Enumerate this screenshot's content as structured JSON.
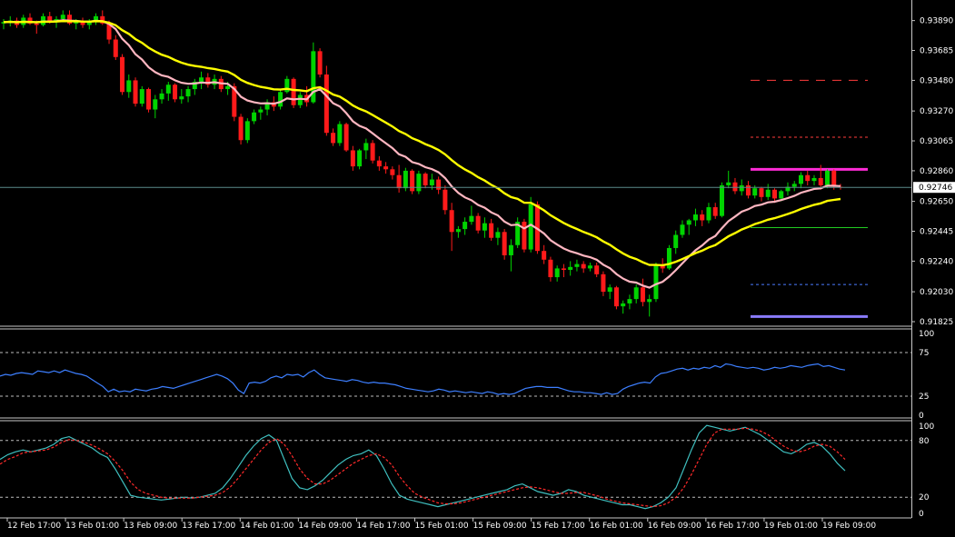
{
  "chart_data": [
    {
      "type": "candlestick",
      "panel": "price",
      "yticks": [
        "0.93890",
        "0.93685",
        "0.93480",
        "0.93270",
        "0.93065",
        "0.92860",
        "0.92650",
        "0.92445",
        "0.92240",
        "0.92030",
        "0.91825"
      ],
      "ylim": [
        0.918,
        0.94
      ],
      "current_price": "0.92746",
      "colors": {
        "up": "#00d400",
        "down": "#ff1a1a",
        "ma_fast": "#ffb6c1",
        "ma_slow": "#ffff00",
        "crosshair": "#5a8a8a"
      },
      "candles": [
        [
          0.9387,
          0.939,
          0.9383,
          0.9388
        ],
        [
          0.9388,
          0.9392,
          0.9385,
          0.9389
        ],
        [
          0.9389,
          0.9391,
          0.9384,
          0.9386
        ],
        [
          0.9386,
          0.9393,
          0.9384,
          0.9391
        ],
        [
          0.9391,
          0.9394,
          0.9386,
          0.9387
        ],
        [
          0.9387,
          0.9389,
          0.938,
          0.9386
        ],
        [
          0.9386,
          0.9394,
          0.9385,
          0.9392
        ],
        [
          0.9392,
          0.9395,
          0.9387,
          0.9388
        ],
        [
          0.9388,
          0.9392,
          0.9384,
          0.939
        ],
        [
          0.939,
          0.9396,
          0.9388,
          0.9393
        ],
        [
          0.9393,
          0.9396,
          0.9386,
          0.9387
        ],
        [
          0.9387,
          0.939,
          0.9383,
          0.9388
        ],
        [
          0.9388,
          0.9391,
          0.9384,
          0.9386
        ],
        [
          0.9386,
          0.939,
          0.9383,
          0.9388
        ],
        [
          0.9388,
          0.9394,
          0.9386,
          0.9392
        ],
        [
          0.9392,
          0.9396,
          0.9386,
          0.9387
        ],
        [
          0.9387,
          0.9389,
          0.9373,
          0.9376
        ],
        [
          0.9376,
          0.9379,
          0.9362,
          0.9364
        ],
        [
          0.9364,
          0.9366,
          0.9338,
          0.934
        ],
        [
          0.934,
          0.9352,
          0.9336,
          0.9348
        ],
        [
          0.9348,
          0.935,
          0.933,
          0.9332
        ],
        [
          0.9332,
          0.9344,
          0.933,
          0.9342
        ],
        [
          0.9342,
          0.9343,
          0.9326,
          0.9328
        ],
        [
          0.9328,
          0.9338,
          0.9322,
          0.9335
        ],
        [
          0.9335,
          0.9342,
          0.9332,
          0.9339
        ],
        [
          0.9339,
          0.9347,
          0.9334,
          0.9345
        ],
        [
          0.9345,
          0.9346,
          0.9333,
          0.9335
        ],
        [
          0.9335,
          0.9342,
          0.9332,
          0.9337
        ],
        [
          0.9337,
          0.9344,
          0.9333,
          0.9342
        ],
        [
          0.9342,
          0.9349,
          0.9338,
          0.9347
        ],
        [
          0.9347,
          0.9354,
          0.9342,
          0.935
        ],
        [
          0.935,
          0.9353,
          0.9343,
          0.9345
        ],
        [
          0.9345,
          0.9352,
          0.9342,
          0.9349
        ],
        [
          0.9349,
          0.9351,
          0.934,
          0.9342
        ],
        [
          0.9342,
          0.9347,
          0.9338,
          0.9344
        ],
        [
          0.9344,
          0.9346,
          0.932,
          0.9323
        ],
        [
          0.9323,
          0.9325,
          0.9304,
          0.9307
        ],
        [
          0.9307,
          0.9322,
          0.9305,
          0.932
        ],
        [
          0.932,
          0.9328,
          0.9318,
          0.9326
        ],
        [
          0.9326,
          0.933,
          0.9321,
          0.9328
        ],
        [
          0.9328,
          0.9335,
          0.9324,
          0.9333
        ],
        [
          0.9333,
          0.9337,
          0.9327,
          0.933
        ],
        [
          0.933,
          0.9342,
          0.9328,
          0.934
        ],
        [
          0.934,
          0.9351,
          0.9339,
          0.9349
        ],
        [
          0.9349,
          0.935,
          0.9329,
          0.9331
        ],
        [
          0.9331,
          0.934,
          0.9329,
          0.9338
        ],
        [
          0.9338,
          0.9344,
          0.933,
          0.9333
        ],
        [
          0.9333,
          0.9374,
          0.9332,
          0.9368
        ],
        [
          0.9368,
          0.937,
          0.935,
          0.9352
        ],
        [
          0.9352,
          0.9358,
          0.931,
          0.9312
        ],
        [
          0.9312,
          0.9315,
          0.9303,
          0.9305
        ],
        [
          0.9305,
          0.932,
          0.9303,
          0.9318
        ],
        [
          0.9318,
          0.9319,
          0.9299,
          0.93
        ],
        [
          0.93,
          0.9303,
          0.9286,
          0.9289
        ],
        [
          0.9289,
          0.9301,
          0.9287,
          0.93
        ],
        [
          0.93,
          0.9308,
          0.9294,
          0.9305
        ],
        [
          0.9305,
          0.9307,
          0.9291,
          0.9293
        ],
        [
          0.9293,
          0.9296,
          0.9286,
          0.9289
        ],
        [
          0.9289,
          0.9292,
          0.9284,
          0.9287
        ],
        [
          0.9287,
          0.9289,
          0.928,
          0.9283
        ],
        [
          0.9283,
          0.929,
          0.9271,
          0.9274
        ],
        [
          0.9274,
          0.9288,
          0.9272,
          0.9286
        ],
        [
          0.9286,
          0.9287,
          0.927,
          0.9272
        ],
        [
          0.9272,
          0.9286,
          0.927,
          0.9284
        ],
        [
          0.9284,
          0.9285,
          0.9274,
          0.9276
        ],
        [
          0.9276,
          0.9284,
          0.9273,
          0.928
        ],
        [
          0.928,
          0.9282,
          0.927,
          0.9273
        ],
        [
          0.9273,
          0.9276,
          0.9256,
          0.9259
        ],
        [
          0.9259,
          0.9264,
          0.9231,
          0.9244
        ],
        [
          0.9244,
          0.9248,
          0.924,
          0.9246
        ],
        [
          0.9246,
          0.9254,
          0.9242,
          0.9251
        ],
        [
          0.9251,
          0.9262,
          0.9249,
          0.9255
        ],
        [
          0.9255,
          0.9257,
          0.9243,
          0.9245
        ],
        [
          0.9245,
          0.9254,
          0.924,
          0.925
        ],
        [
          0.925,
          0.9253,
          0.9238,
          0.924
        ],
        [
          0.924,
          0.9247,
          0.9235,
          0.9244
        ],
        [
          0.9244,
          0.9246,
          0.9225,
          0.9228
        ],
        [
          0.9228,
          0.9239,
          0.9217,
          0.9235
        ],
        [
          0.9235,
          0.9254,
          0.9233,
          0.9251
        ],
        [
          0.9251,
          0.9253,
          0.923,
          0.9232
        ],
        [
          0.9232,
          0.9268,
          0.923,
          0.9263
        ],
        [
          0.9263,
          0.9265,
          0.9229,
          0.9231
        ],
        [
          0.9231,
          0.9235,
          0.9222,
          0.9225
        ],
        [
          0.9225,
          0.9227,
          0.921,
          0.9213
        ],
        [
          0.9213,
          0.9221,
          0.921,
          0.9219
        ],
        [
          0.9219,
          0.9222,
          0.9213,
          0.9218
        ],
        [
          0.9218,
          0.9224,
          0.9214,
          0.922
        ],
        [
          0.922,
          0.9225,
          0.9217,
          0.9222
        ],
        [
          0.9222,
          0.9224,
          0.9216,
          0.9219
        ],
        [
          0.9219,
          0.9223,
          0.9217,
          0.9221
        ],
        [
          0.9221,
          0.9223,
          0.9213,
          0.9215
        ],
        [
          0.9215,
          0.9217,
          0.92,
          0.9203
        ],
        [
          0.9203,
          0.9208,
          0.9198,
          0.9206
        ],
        [
          0.9206,
          0.9207,
          0.9191,
          0.9193
        ],
        [
          0.9193,
          0.9197,
          0.9188,
          0.9195
        ],
        [
          0.9195,
          0.9201,
          0.9191,
          0.9198
        ],
        [
          0.9198,
          0.9208,
          0.9195,
          0.9206
        ],
        [
          0.9206,
          0.9212,
          0.9193,
          0.9196
        ],
        [
          0.9196,
          0.9201,
          0.9186,
          0.9198
        ],
        [
          0.9198,
          0.9223,
          0.9196,
          0.9221
        ],
        [
          0.9221,
          0.9226,
          0.9216,
          0.9219
        ],
        [
          0.9219,
          0.9235,
          0.9218,
          0.9233
        ],
        [
          0.9233,
          0.9245,
          0.9229,
          0.9242
        ],
        [
          0.9242,
          0.9252,
          0.924,
          0.9249
        ],
        [
          0.9249,
          0.9253,
          0.9242,
          0.9252
        ],
        [
          0.9252,
          0.926,
          0.9248,
          0.9256
        ],
        [
          0.9256,
          0.9259,
          0.9248,
          0.9252
        ],
        [
          0.9252,
          0.9264,
          0.925,
          0.9261
        ],
        [
          0.9261,
          0.9264,
          0.9253,
          0.9255
        ],
        [
          0.9255,
          0.9278,
          0.9254,
          0.9276
        ],
        [
          0.9276,
          0.9286,
          0.9274,
          0.9278
        ],
        [
          0.9278,
          0.9281,
          0.927,
          0.9272
        ],
        [
          0.9272,
          0.928,
          0.9269,
          0.9276
        ],
        [
          0.9276,
          0.9279,
          0.9267,
          0.9269
        ],
        [
          0.9269,
          0.9276,
          0.9267,
          0.9274
        ],
        [
          0.9274,
          0.9275,
          0.9265,
          0.9268
        ],
        [
          0.9268,
          0.9277,
          0.9266,
          0.9273
        ],
        [
          0.9273,
          0.9274,
          0.9264,
          0.9267
        ],
        [
          0.9267,
          0.9273,
          0.9265,
          0.9272
        ],
        [
          0.9272,
          0.9278,
          0.9269,
          0.9275
        ],
        [
          0.9275,
          0.9279,
          0.9272,
          0.9277
        ],
        [
          0.9277,
          0.9285,
          0.9274,
          0.9283
        ],
        [
          0.9283,
          0.9286,
          0.9276,
          0.9279
        ],
        [
          0.9279,
          0.9283,
          0.9276,
          0.9281
        ],
        [
          0.9281,
          0.929,
          0.9273,
          0.9276
        ],
        [
          0.9276,
          0.9287,
          0.9274,
          0.9286
        ],
        [
          0.9286,
          0.9287,
          0.9273,
          0.9275
        ],
        [
          0.9275,
          0.9277,
          0.9273,
          0.92746
        ]
      ],
      "levels": [
        {
          "value": 0.9348,
          "color": "#ff3b3b",
          "style": "dash-long"
        },
        {
          "value": 0.9309,
          "color": "#ff3b3b",
          "style": "dash-short"
        },
        {
          "value": 0.9287,
          "color": "#ff2bd6",
          "style": "solid-thick"
        },
        {
          "value": 0.9247,
          "color": "#22cc22",
          "style": "solid"
        },
        {
          "value": 0.9208,
          "color": "#4a7bff",
          "style": "dash-short"
        },
        {
          "value": 0.9186,
          "color": "#8a7bff",
          "style": "solid-thick"
        }
      ]
    },
    {
      "type": "line",
      "panel": "rsi",
      "yticks": [
        "100",
        "75",
        "25",
        "0"
      ],
      "ylim": [
        0,
        100
      ],
      "levels": [
        75,
        25
      ],
      "color": "#3d7fff",
      "values": [
        48,
        50,
        49,
        51,
        52,
        51,
        50,
        54,
        53,
        52,
        54,
        52,
        55,
        53,
        51,
        50,
        48,
        44,
        40,
        36,
        30,
        33,
        30,
        31,
        30,
        33,
        32,
        31,
        33,
        34,
        36,
        35,
        34,
        36,
        38,
        40,
        42,
        44,
        46,
        48,
        50,
        48,
        45,
        40,
        32,
        28,
        40,
        41,
        40,
        42,
        46,
        48,
        46,
        50,
        49,
        50,
        47,
        52,
        55,
        50,
        46,
        45,
        44,
        43,
        42,
        44,
        43,
        41,
        40,
        41,
        40,
        40,
        39,
        38,
        36,
        34,
        33,
        32,
        31,
        30,
        31,
        33,
        32,
        30,
        31,
        30,
        29,
        30,
        29,
        28,
        30,
        29,
        27,
        28,
        27,
        28,
        31,
        34,
        35,
        36,
        36,
        35,
        35,
        35,
        33,
        31,
        30,
        30,
        29,
        29,
        28,
        27,
        29,
        27,
        28,
        33,
        36,
        38,
        40,
        41,
        40,
        47,
        51,
        52,
        54,
        56,
        57,
        55,
        57,
        56,
        58,
        57,
        60,
        58,
        62,
        61,
        59,
        58,
        57,
        58,
        57,
        55,
        56,
        58,
        57,
        58,
        60,
        59,
        58,
        60,
        61,
        62,
        59,
        60,
        58,
        56,
        55
      ]
    },
    {
      "type": "line",
      "panel": "stochastic",
      "yticks": [
        "100",
        "80",
        "20",
        "0"
      ],
      "ylim": [
        0,
        100
      ],
      "levels": [
        80,
        20
      ],
      "main_color": "#3fbfbf",
      "signal_color": "#ff2a2a",
      "main": [
        60,
        65,
        68,
        70,
        68,
        70,
        72,
        76,
        82,
        84,
        80,
        76,
        72,
        66,
        62,
        50,
        36,
        22,
        20,
        19,
        18,
        17,
        18,
        19,
        20,
        19,
        20,
        22,
        24,
        30,
        40,
        52,
        64,
        74,
        82,
        86,
        80,
        60,
        40,
        30,
        28,
        32,
        38,
        46,
        54,
        60,
        64,
        66,
        70,
        64,
        50,
        34,
        22,
        18,
        16,
        14,
        12,
        10,
        12,
        14,
        16,
        18,
        20,
        22,
        24,
        26,
        28,
        32,
        34,
        30,
        26,
        24,
        22,
        24,
        28,
        26,
        22,
        20,
        18,
        16,
        14,
        12,
        12,
        10,
        8,
        10,
        14,
        20,
        30,
        50,
        70,
        88,
        96,
        94,
        92,
        90,
        92,
        94,
        90,
        86,
        80,
        74,
        68,
        66,
        70,
        76,
        78,
        74,
        66,
        56,
        48
      ],
      "signal": [
        55,
        60,
        63,
        67,
        68,
        69,
        70,
        73,
        78,
        81,
        80,
        78,
        75,
        71,
        66,
        58,
        48,
        36,
        28,
        24,
        22,
        20,
        19,
        19,
        19,
        19,
        20,
        21,
        22,
        25,
        31,
        40,
        50,
        60,
        70,
        78,
        82,
        76,
        64,
        50,
        40,
        34,
        34,
        38,
        44,
        50,
        56,
        60,
        64,
        66,
        62,
        54,
        42,
        32,
        24,
        20,
        17,
        14,
        13,
        13,
        14,
        16,
        18,
        20,
        22,
        24,
        26,
        28,
        30,
        31,
        30,
        28,
        26,
        24,
        24,
        25,
        25,
        23,
        21,
        18,
        16,
        14,
        13,
        12,
        11,
        10,
        11,
        14,
        20,
        30,
        44,
        60,
        76,
        88,
        92,
        92,
        92,
        93,
        92,
        90,
        86,
        80,
        74,
        70,
        68,
        70,
        74,
        76,
        74,
        68,
        60
      ],
      "xlabels": [
        "12 Feb 17:00",
        "13 Feb 01:00",
        "13 Feb 09:00",
        "13 Feb 17:00",
        "14 Feb 01:00",
        "14 Feb 09:00",
        "14 Feb 17:00",
        "15 Feb 01:00",
        "15 Feb 09:00",
        "15 Feb 17:00",
        "16 Feb 01:00",
        "16 Feb 09:00",
        "16 Feb 17:00",
        "19 Feb 01:00",
        "19 Feb 09:00"
      ]
    }
  ]
}
